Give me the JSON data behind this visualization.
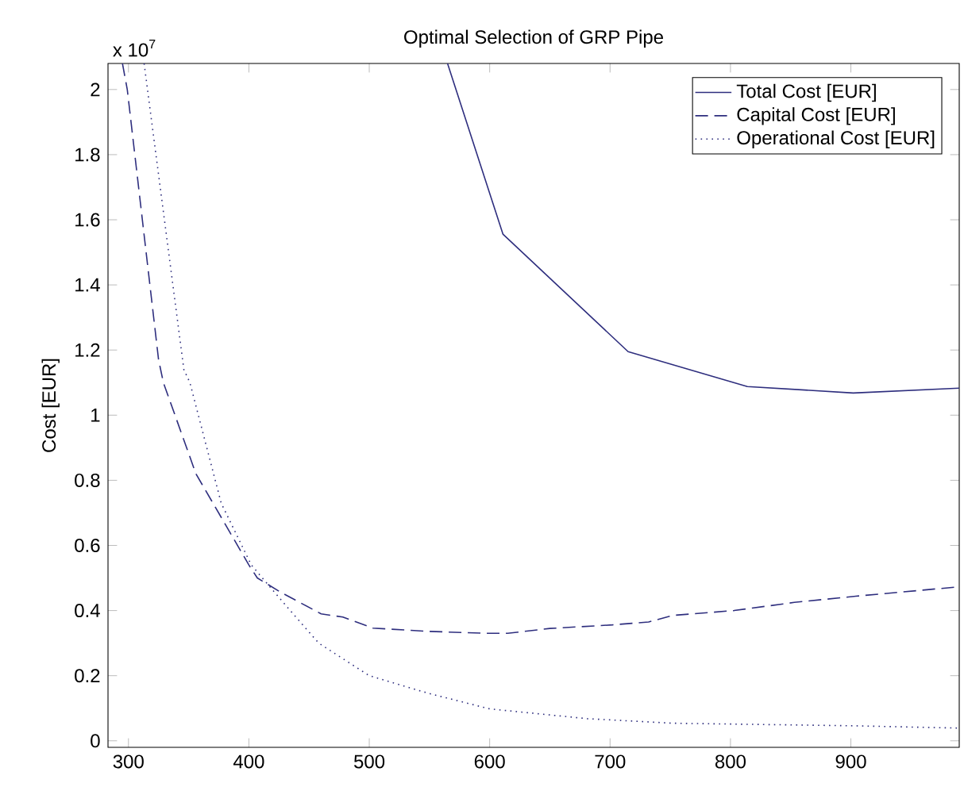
{
  "chart_data": {
    "type": "line",
    "title": "Optimal Selection of GRP Pipe",
    "ylabel": "Cost [EUR]",
    "annotations": [
      "x 10$^{7}$"
    ],
    "xlim": [
      283,
      990
    ],
    "ylim": [
      -0.02,
      2.08
    ],
    "xticks": [
      300,
      400,
      500,
      600,
      700,
      800,
      900
    ],
    "yticks": [
      0,
      0.2,
      0.4,
      0.6,
      0.8,
      1,
      1.2,
      1.4,
      1.6,
      1.8,
      2
    ],
    "legend": "top right",
    "marker": "none",
    "series": [
      {
        "name": "Total Cost [EUR]",
        "color": "#2e2e7e",
        "line_style": "solid",
        "x": [
          565,
          611,
          715,
          814,
          902,
          990
        ],
        "values": [
          2.08,
          1.556,
          1.195,
          1.088,
          1.068,
          1.083
        ]
      },
      {
        "name": "Capital Cost [EUR]",
        "color": "#2e2e7e",
        "line_style": "dashed",
        "x": [
          295,
          299,
          325,
          329,
          356,
          400,
          407,
          427,
          460,
          478,
          503,
          549,
          600,
          615,
          650,
          702,
          732,
          752,
          803,
          853,
          904,
          990
        ],
        "values": [
          2.08,
          2.0,
          1.17,
          1.1,
          0.82,
          0.54,
          0.5,
          0.455,
          0.39,
          0.38,
          0.346,
          0.336,
          0.33,
          0.33,
          0.345,
          0.356,
          0.365,
          0.385,
          0.4,
          0.425,
          0.444,
          0.473
        ]
      },
      {
        "name": "Operational Cost [EUR]",
        "color": "#2e2e7e",
        "line_style": "dotted",
        "x": [
          313,
          346,
          351,
          377,
          402,
          432,
          458,
          500,
          549,
          600,
          681,
          752,
          904,
          990
        ],
        "values": [
          2.08,
          1.14,
          1.1,
          0.73,
          0.54,
          0.41,
          0.3,
          0.2,
          0.146,
          0.098,
          0.068,
          0.054,
          0.046,
          0.039
        ]
      }
    ]
  }
}
